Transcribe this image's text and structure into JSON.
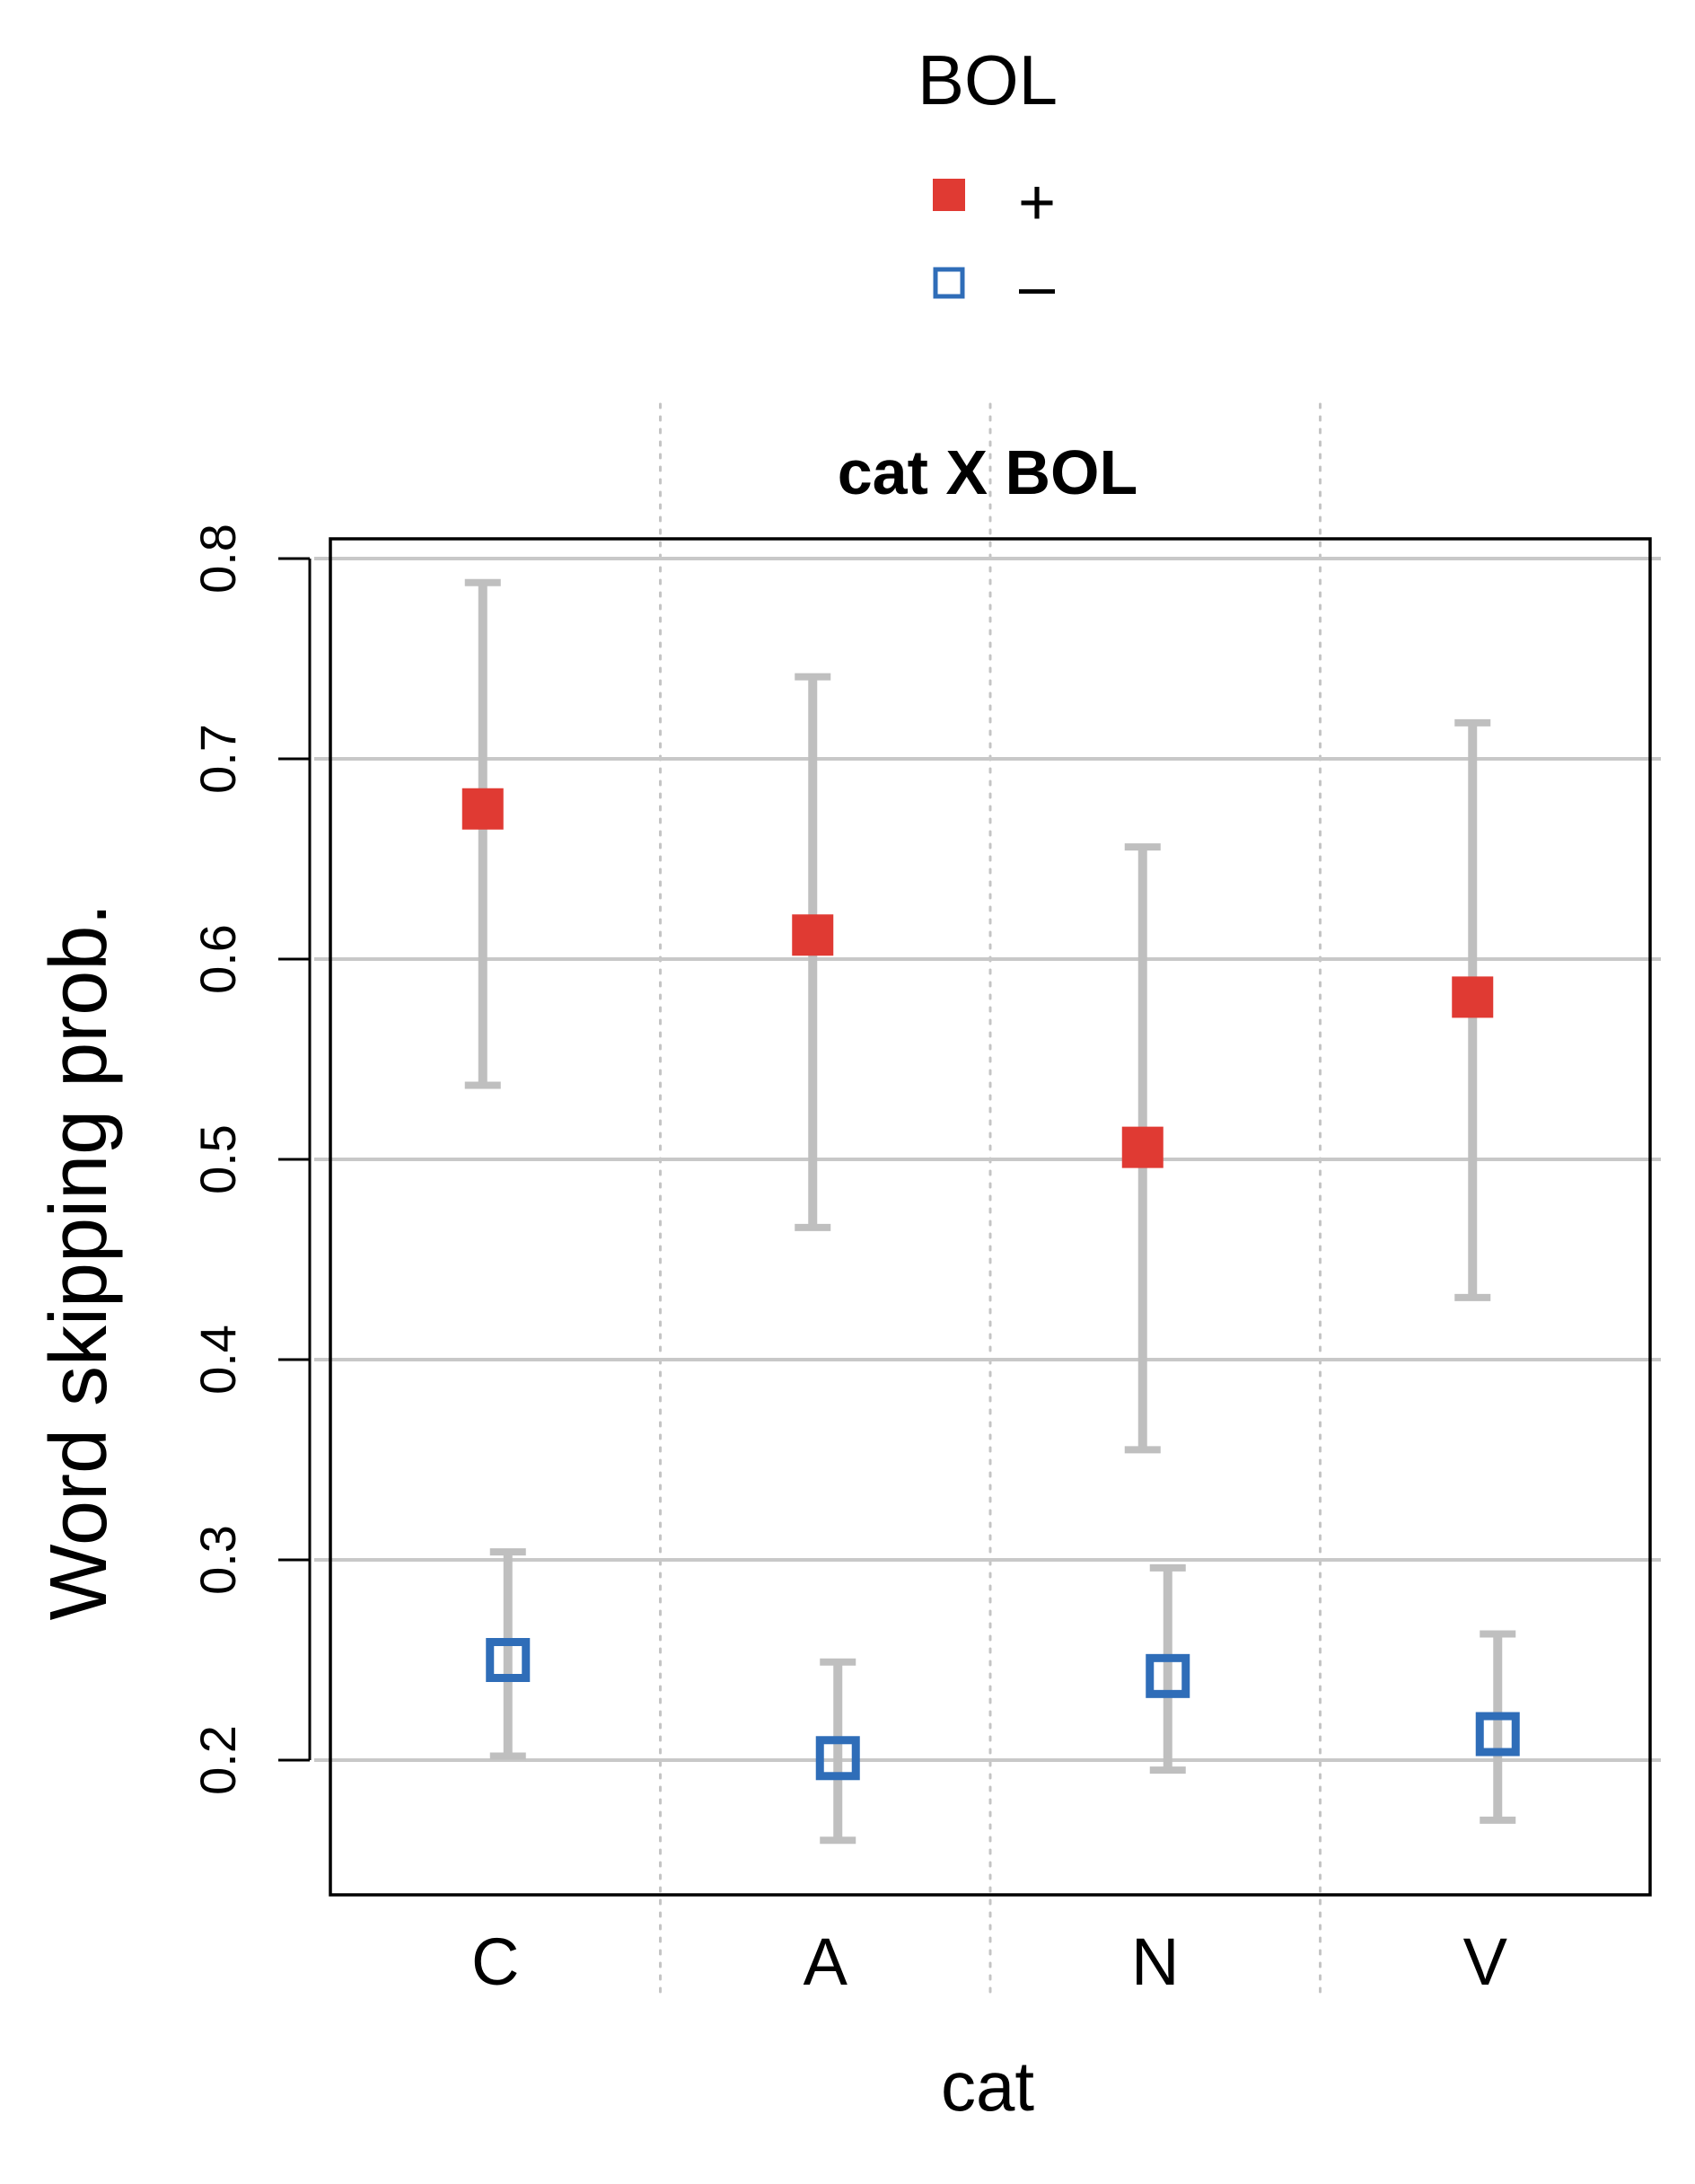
{
  "chart_data": {
    "type": "scatter",
    "title": "cat X BOL",
    "xlabel": "cat",
    "ylabel": "Word skipping prob.",
    "categories": [
      "C",
      "A",
      "N",
      "V"
    ],
    "ylim": [
      0.15,
      0.8
    ],
    "yticks": [
      0.2,
      0.3,
      0.4,
      0.5,
      0.6,
      0.7,
      0.8
    ],
    "ytick_labels": [
      "0.2",
      "0.3",
      "0.4",
      "0.5",
      "0.6",
      "0.7",
      "0.8"
    ],
    "grid": true,
    "legend": {
      "title": "BOL",
      "position": "top-center",
      "entries": [
        {
          "label": "+",
          "marker": "filled-square",
          "color": "#e03a33"
        },
        {
          "label": "–",
          "marker": "open-square",
          "color": "#2f6db8"
        }
      ]
    },
    "series": [
      {
        "name": "+",
        "color": "#e03a33",
        "marker": "filled-square",
        "values": [
          0.675,
          0.612,
          0.506,
          0.581
        ],
        "lower": [
          0.537,
          0.466,
          0.355,
          0.431
        ],
        "upper": [
          0.788,
          0.741,
          0.656,
          0.718
        ]
      },
      {
        "name": "–",
        "color": "#2f6db8",
        "marker": "open-square",
        "values": [
          0.25,
          0.201,
          0.242,
          0.213
        ],
        "lower": [
          0.202,
          0.16,
          0.195,
          0.17
        ],
        "upper": [
          0.304,
          0.249,
          0.296,
          0.263
        ]
      }
    ],
    "errorbar_color": "#bfbfbf",
    "gridline_color": "#c8c8c8"
  }
}
